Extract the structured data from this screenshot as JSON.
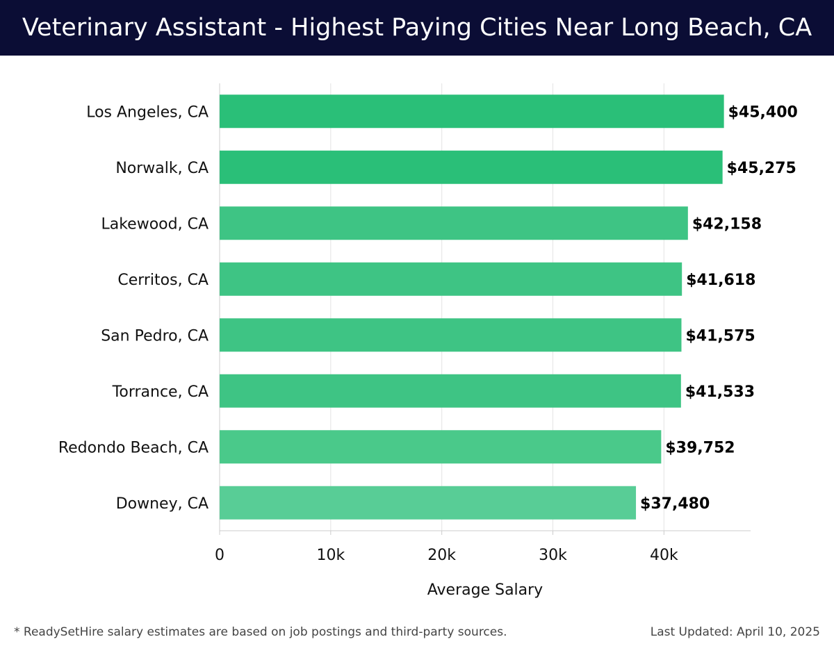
{
  "header": {
    "title": "Veterinary Assistant - Highest Paying Cities Near Long Beach, CA"
  },
  "chart_data": {
    "type": "bar",
    "orientation": "horizontal",
    "title": "Veterinary Assistant - Highest Paying Cities Near Long Beach, CA",
    "xlabel": "Average Salary",
    "ylabel": "",
    "categories": [
      "Los Angeles, CA",
      "Norwalk, CA",
      "Lakewood, CA",
      "Cerritos, CA",
      "San Pedro, CA",
      "Torrance, CA",
      "Redondo Beach, CA",
      "Downey, CA"
    ],
    "values": [
      45400,
      45275,
      42158,
      41618,
      41575,
      41533,
      39752,
      37480
    ],
    "value_labels": [
      "$45,400",
      "$45,275",
      "$42,158",
      "$41,618",
      "$41,575",
      "$41,533",
      "$39,752",
      "$37,480"
    ],
    "xlim": [
      0,
      47800
    ],
    "xticks": [
      0,
      10000,
      20000,
      30000,
      40000
    ],
    "xtick_labels": [
      "0",
      "10k",
      "20k",
      "30k",
      "40k"
    ],
    "grid": true,
    "bar_colors": [
      "#2abf78",
      "#2abf78",
      "#3ec484",
      "#3ec484",
      "#3ec484",
      "#3ec484",
      "#4ac98a",
      "#58cd96"
    ]
  },
  "footer": {
    "note": "* ReadySetHire salary estimates are based on job postings and third-party sources.",
    "updated": "Last Updated: April 10, 2025"
  }
}
